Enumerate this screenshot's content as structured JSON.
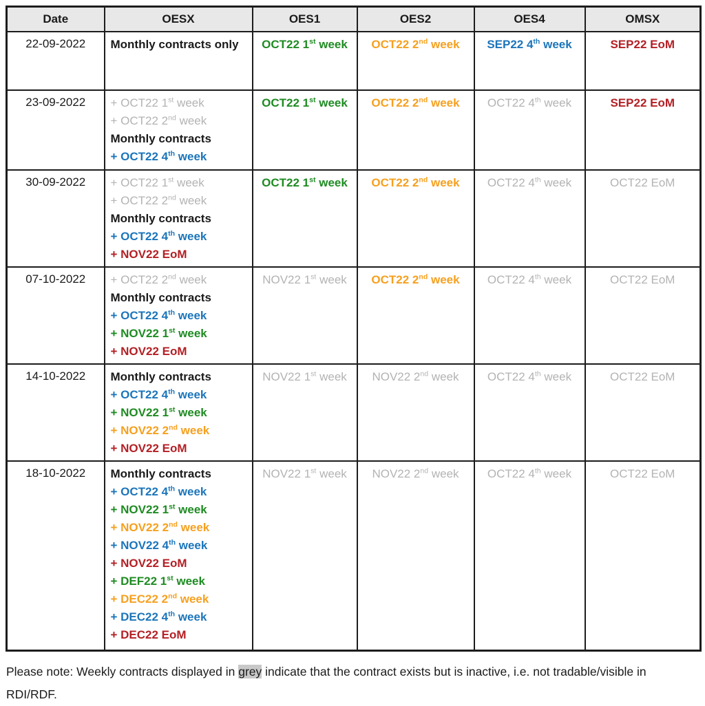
{
  "colors": {
    "black": "#1a1a1a",
    "grey": "#b3b3b3",
    "green": "#1e8b22",
    "orange": "#f6a01f",
    "blue": "#1b75bb",
    "red": "#b32025"
  },
  "table": {
    "columns": [
      "Date",
      "OESX",
      "OES1",
      "OES2",
      "OES4",
      "OMSX"
    ],
    "rows": [
      {
        "date": "22-09-2022",
        "cells": [
          [
            {
              "color": "black",
              "bold": true,
              "segments": [
                "Monthly contracts only"
              ]
            }
          ],
          [
            {
              "color": "green",
              "bold": true,
              "segments": [
                "OCT22 1",
                {
                  "sup": "st"
                },
                " week"
              ]
            }
          ],
          [
            {
              "color": "orange",
              "bold": true,
              "segments": [
                "OCT22 2",
                {
                  "sup": "nd"
                },
                " week"
              ]
            }
          ],
          [
            {
              "color": "blue",
              "bold": true,
              "segments": [
                "SEP22 4",
                {
                  "sup": "th"
                },
                " week"
              ]
            }
          ],
          [
            {
              "color": "red",
              "bold": true,
              "segments": [
                "SEP22 EoM"
              ]
            }
          ]
        ]
      },
      {
        "date": "23-09-2022",
        "cells": [
          [
            {
              "color": "grey",
              "bold": false,
              "segments": [
                "+ OCT22 1",
                {
                  "sup": "st"
                },
                " week"
              ]
            },
            {
              "color": "grey",
              "bold": false,
              "segments": [
                "+ OCT22 2",
                {
                  "sup": "nd"
                },
                " week"
              ]
            },
            {
              "color": "black",
              "bold": true,
              "segments": [
                "Monthly contracts"
              ]
            },
            {
              "color": "blue",
              "bold": true,
              "segments": [
                "+ OCT22 4",
                {
                  "sup": "th"
                },
                " week"
              ]
            }
          ],
          [
            {
              "color": "green",
              "bold": true,
              "segments": [
                "OCT22 1",
                {
                  "sup": "st"
                },
                " week"
              ]
            }
          ],
          [
            {
              "color": "orange",
              "bold": true,
              "segments": [
                "OCT22 2",
                {
                  "sup": "nd"
                },
                " week"
              ]
            }
          ],
          [
            {
              "color": "grey",
              "bold": false,
              "segments": [
                "OCT22 4",
                {
                  "sup": "th"
                },
                " week"
              ]
            }
          ],
          [
            {
              "color": "red",
              "bold": true,
              "segments": [
                "SEP22 EoM"
              ]
            }
          ]
        ]
      },
      {
        "date": "30-09-2022",
        "cells": [
          [
            {
              "color": "grey",
              "bold": false,
              "segments": [
                "+ OCT22 1",
                {
                  "sup": "st"
                },
                " week"
              ]
            },
            {
              "color": "grey",
              "bold": false,
              "segments": [
                "+ OCT22 2",
                {
                  "sup": "nd"
                },
                " week"
              ]
            },
            {
              "color": "black",
              "bold": true,
              "segments": [
                "Monthly contracts"
              ]
            },
            {
              "color": "blue",
              "bold": true,
              "segments": [
                "+ OCT22 4",
                {
                  "sup": "th"
                },
                " week"
              ]
            },
            {
              "color": "red",
              "bold": true,
              "segments": [
                "+ NOV22 EoM"
              ]
            }
          ],
          [
            {
              "color": "green",
              "bold": true,
              "segments": [
                "OCT22 1",
                {
                  "sup": "st"
                },
                " week"
              ]
            }
          ],
          [
            {
              "color": "orange",
              "bold": true,
              "segments": [
                "OCT22 2",
                {
                  "sup": "nd"
                },
                " week"
              ]
            }
          ],
          [
            {
              "color": "grey",
              "bold": false,
              "segments": [
                "OCT22 4",
                {
                  "sup": "th"
                },
                " week"
              ]
            }
          ],
          [
            {
              "color": "grey",
              "bold": false,
              "segments": [
                "OCT22 EoM"
              ]
            }
          ]
        ]
      },
      {
        "date": "07-10-2022",
        "cells": [
          [
            {
              "color": "grey",
              "bold": false,
              "segments": [
                "+ OCT22 2",
                {
                  "sup": "nd"
                },
                " week"
              ]
            },
            {
              "color": "black",
              "bold": true,
              "segments": [
                "Monthly contracts"
              ]
            },
            {
              "color": "blue",
              "bold": true,
              "segments": [
                "+ OCT22 4",
                {
                  "sup": "th"
                },
                " week"
              ]
            },
            {
              "color": "green",
              "bold": true,
              "segments": [
                "+ NOV22 1",
                {
                  "sup": "st"
                },
                " week"
              ]
            },
            {
              "color": "red",
              "bold": true,
              "segments": [
                "+ NOV22 EoM"
              ]
            }
          ],
          [
            {
              "color": "grey",
              "bold": false,
              "segments": [
                "NOV22 1",
                {
                  "sup": "st"
                },
                " week"
              ]
            }
          ],
          [
            {
              "color": "orange",
              "bold": true,
              "segments": [
                "OCT22 2",
                {
                  "sup": "nd"
                },
                " week"
              ]
            }
          ],
          [
            {
              "color": "grey",
              "bold": false,
              "segments": [
                "OCT22 4",
                {
                  "sup": "th"
                },
                " week"
              ]
            }
          ],
          [
            {
              "color": "grey",
              "bold": false,
              "segments": [
                "OCT22 EoM"
              ]
            }
          ]
        ]
      },
      {
        "date": "14-10-2022",
        "cells": [
          [
            {
              "color": "black",
              "bold": true,
              "segments": [
                "Monthly contracts"
              ]
            },
            {
              "color": "blue",
              "bold": true,
              "segments": [
                "+ OCT22 4",
                {
                  "sup": "th"
                },
                " week"
              ]
            },
            {
              "color": "green",
              "bold": true,
              "segments": [
                "+ NOV22 1",
                {
                  "sup": "st"
                },
                " week"
              ]
            },
            {
              "color": "orange",
              "bold": true,
              "segments": [
                "+ NOV22 2",
                {
                  "sup": "nd"
                },
                " week"
              ]
            },
            {
              "color": "red",
              "bold": true,
              "segments": [
                "+ NOV22 EoM"
              ]
            }
          ],
          [
            {
              "color": "grey",
              "bold": false,
              "segments": [
                "NOV22 1",
                {
                  "sup": "st"
                },
                " week"
              ]
            }
          ],
          [
            {
              "color": "grey",
              "bold": false,
              "segments": [
                "NOV22 2",
                {
                  "sup": "nd"
                },
                " week"
              ]
            }
          ],
          [
            {
              "color": "grey",
              "bold": false,
              "segments": [
                "OCT22 4",
                {
                  "sup": "th"
                },
                " week"
              ]
            }
          ],
          [
            {
              "color": "grey",
              "bold": false,
              "segments": [
                "OCT22 EoM"
              ]
            }
          ]
        ]
      },
      {
        "date": "18-10-2022",
        "cells": [
          [
            {
              "color": "black",
              "bold": true,
              "segments": [
                "Monthly contracts"
              ]
            },
            {
              "color": "blue",
              "bold": true,
              "segments": [
                "+ OCT22 4",
                {
                  "sup": "th"
                },
                " week"
              ]
            },
            {
              "color": "green",
              "bold": true,
              "segments": [
                "+ NOV22 1",
                {
                  "sup": "st"
                },
                " week"
              ]
            },
            {
              "color": "orange",
              "bold": true,
              "segments": [
                "+ NOV22 2",
                {
                  "sup": "nd"
                },
                " week"
              ]
            },
            {
              "color": "blue",
              "bold": true,
              "segments": [
                "+ NOV22 4",
                {
                  "sup": "th"
                },
                " week"
              ]
            },
            {
              "color": "red",
              "bold": true,
              "segments": [
                "+ NOV22 EoM"
              ]
            },
            {
              "color": "green",
              "bold": true,
              "segments": [
                "+ DEF22 1",
                {
                  "sup": "st"
                },
                " week"
              ]
            },
            {
              "color": "orange",
              "bold": true,
              "segments": [
                "+ DEC22 2",
                {
                  "sup": "nd"
                },
                " week"
              ]
            },
            {
              "color": "blue",
              "bold": true,
              "segments": [
                "+ DEC22 4",
                {
                  "sup": "th"
                },
                " week"
              ]
            },
            {
              "color": "red",
              "bold": true,
              "segments": [
                "+ DEC22 EoM"
              ]
            }
          ],
          [
            {
              "color": "grey",
              "bold": false,
              "segments": [
                "NOV22 1",
                {
                  "sup": "st"
                },
                " week"
              ]
            }
          ],
          [
            {
              "color": "grey",
              "bold": false,
              "segments": [
                "NOV22 2",
                {
                  "sup": "nd"
                },
                " week"
              ]
            }
          ],
          [
            {
              "color": "grey",
              "bold": false,
              "segments": [
                "OCT22 4",
                {
                  "sup": "th"
                },
                " week"
              ]
            }
          ],
          [
            {
              "color": "grey",
              "bold": false,
              "segments": [
                "OCT22 EoM"
              ]
            }
          ]
        ]
      }
    ]
  },
  "note": {
    "prefix": "Please note: Weekly contracts displayed in ",
    "highlight": "grey",
    "suffix": " indicate that the contract exists but is inactive, i.e. not tradable/visible in RDI/RDF."
  }
}
